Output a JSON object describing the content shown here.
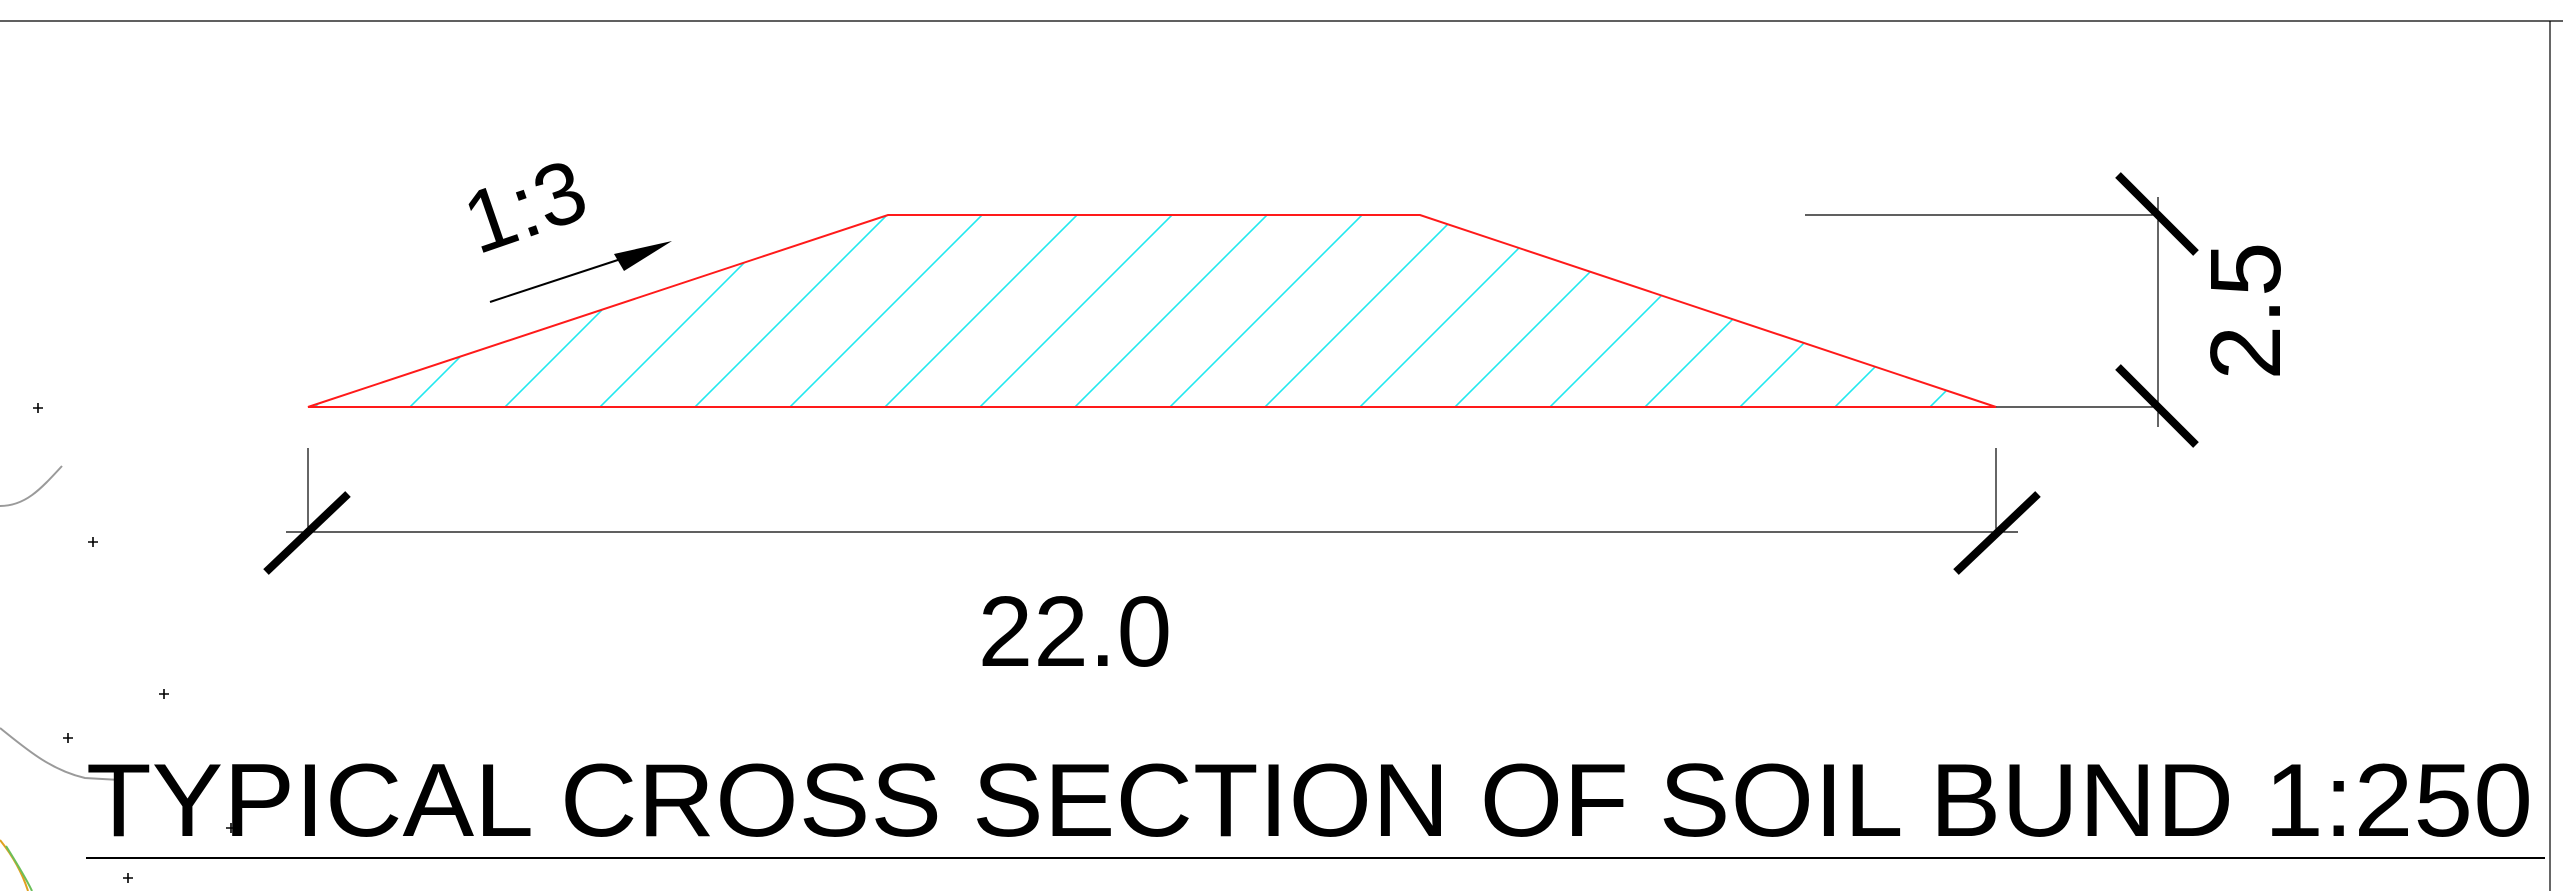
{
  "drawing": {
    "title": "TYPICAL CROSS SECTION OF SOIL BUND 1:250",
    "slope_label": "1:3",
    "width_dimension": "22.0",
    "height_dimension": "2.5"
  },
  "colors": {
    "outline": "#ff1a1a",
    "hatch": "#22e8ef",
    "lines": "#000000",
    "faint_lines": "#555555",
    "contour": "#9a9a9a",
    "contour_accent": "#e0a020"
  }
}
